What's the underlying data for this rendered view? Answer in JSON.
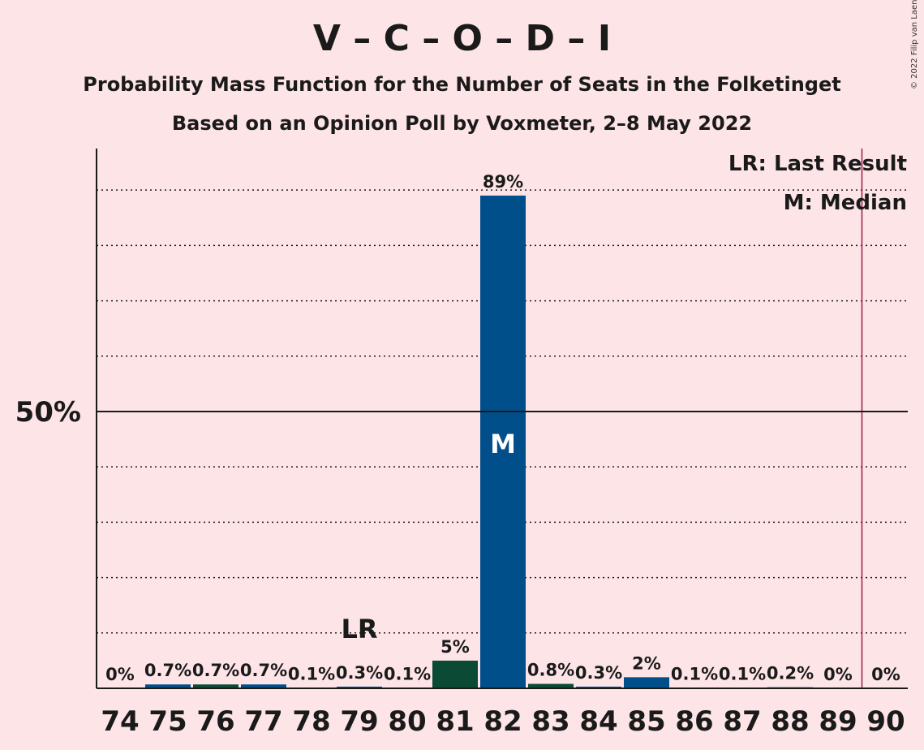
{
  "title": "V – C – O – D – I",
  "subtitle_1": "Probability Mass Function for the Number of Seats in the Folketinget",
  "subtitle_2": "Based on an Opinion Poll by Voxmeter, 2–8 May 2022",
  "copyright": "© 2022 Filip van Laenen",
  "legend": {
    "last_result": "LR: Last Result",
    "median": "M: Median"
  },
  "colors": {
    "background": "#FDE4E7",
    "bar_blue": "#004E8A",
    "bar_green": "#0B4A35",
    "majority_line": "#9C1A4E"
  },
  "chart_data": {
    "type": "bar",
    "categories": [
      "74",
      "75",
      "76",
      "77",
      "78",
      "79",
      "80",
      "81",
      "82",
      "83",
      "84",
      "85",
      "86",
      "87",
      "88",
      "89",
      "90"
    ],
    "values": [
      0,
      0.7,
      0.7,
      0.7,
      0.1,
      0.3,
      0.1,
      5,
      89,
      0.8,
      0.3,
      2,
      0.1,
      0.1,
      0.2,
      0,
      0
    ],
    "labels": [
      "0%",
      "0.7%",
      "0.7%",
      "0.7%",
      "0.1%",
      "0.3%",
      "0.1%",
      "5%",
      "89%",
      "0.8%",
      "0.3%",
      "2%",
      "0.1%",
      "0.1%",
      "0.2%",
      "0%",
      "0%"
    ],
    "bar_colors": [
      "#004E8A",
      "#004E8A",
      "#0B4A35",
      "#004E8A",
      "#004E8A",
      "#004E8A",
      "#004E8A",
      "#0B4A35",
      "#004E8A",
      "#0B4A35",
      "#004E8A",
      "#004E8A",
      "#004E8A",
      "#004E8A",
      "#004E8A",
      "#004E8A",
      "#004E8A"
    ],
    "ylim": [
      0,
      97.5
    ],
    "ytick_label": "50%",
    "ytick_value": 50,
    "gridlines": [
      10,
      20,
      30,
      40,
      60,
      70,
      80,
      90
    ],
    "last_result_seat": "79",
    "last_result_mark": "LR",
    "median_seat": "82",
    "median_mark": "M",
    "majority_seat": 89.5
  }
}
